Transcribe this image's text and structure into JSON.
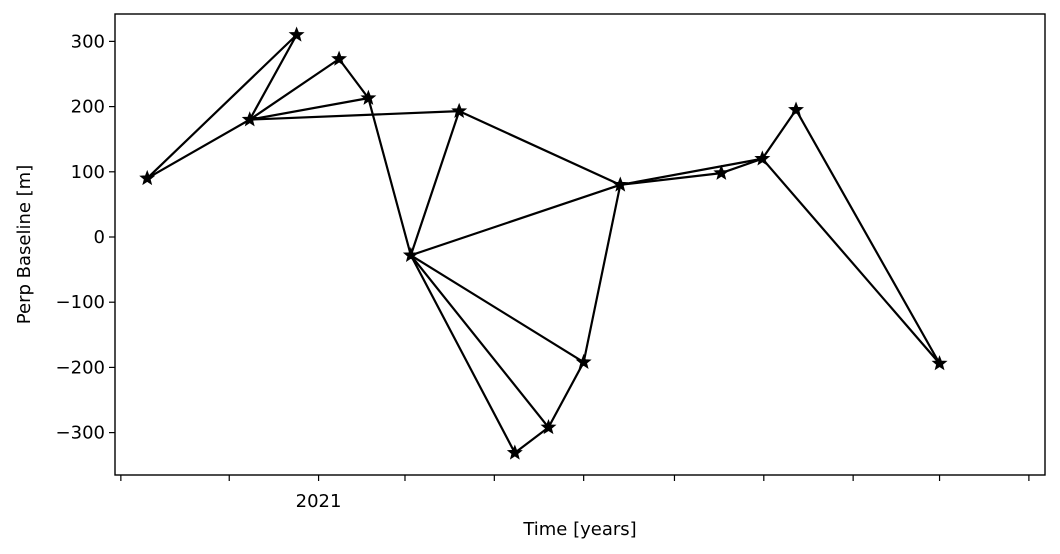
{
  "chart_data": {
    "type": "scatter",
    "xlabel": "Time [years]",
    "ylabel": "Perp Baseline [m]",
    "xlim": [
      "2020-08-15",
      "2022-05-12"
    ],
    "ylim": [
      -365,
      342
    ],
    "yticks": [
      -300,
      -200,
      -100,
      0,
      100,
      200,
      300
    ],
    "yticklabels": [
      "−300",
      "−200",
      "−100",
      "0",
      "100",
      "200",
      "300"
    ],
    "xticks": [
      "2020-08-19",
      "2020-11-01",
      "2021-01-01",
      "2021-03-01",
      "2021-05-01",
      "2021-07-01",
      "2021-09-01",
      "2021-11-01",
      "2022-01-01",
      "2022-03-01",
      "2022-05-01"
    ],
    "xticklabels": [
      "",
      "",
      "2021",
      "",
      "",
      "",
      "",
      "",
      "",
      "",
      ""
    ],
    "marker": "star",
    "line_color": "#000000",
    "points": [
      {
        "x": "2020-09-06",
        "y": 90
      },
      {
        "x": "2020-11-15",
        "y": 180
      },
      {
        "x": "2020-12-17",
        "y": 310
      },
      {
        "x": "2021-01-15",
        "y": 273
      },
      {
        "x": "2021-02-04",
        "y": 213
      },
      {
        "x": "2021-03-05",
        "y": -28
      },
      {
        "x": "2021-04-07",
        "y": 193
      },
      {
        "x": "2021-05-15",
        "y": -331
      },
      {
        "x": "2021-06-07",
        "y": -292
      },
      {
        "x": "2021-07-01",
        "y": -192
      },
      {
        "x": "2021-07-26",
        "y": 80
      },
      {
        "x": "2021-10-03",
        "y": 98
      },
      {
        "x": "2021-10-31",
        "y": 120
      },
      {
        "x": "2021-11-23",
        "y": 195
      },
      {
        "x": "2022-03-01",
        "y": -194
      }
    ],
    "edges": [
      [
        0,
        1
      ],
      [
        0,
        2
      ],
      [
        1,
        2
      ],
      [
        1,
        3
      ],
      [
        1,
        4
      ],
      [
        1,
        6
      ],
      [
        3,
        4
      ],
      [
        4,
        5
      ],
      [
        5,
        6
      ],
      [
        6,
        10
      ],
      [
        5,
        10
      ],
      [
        5,
        7
      ],
      [
        5,
        8
      ],
      [
        5,
        9
      ],
      [
        7,
        8
      ],
      [
        8,
        9
      ],
      [
        9,
        10
      ],
      [
        10,
        11
      ],
      [
        10,
        12
      ],
      [
        11,
        12
      ],
      [
        12,
        13
      ],
      [
        12,
        14
      ],
      [
        13,
        14
      ]
    ]
  }
}
